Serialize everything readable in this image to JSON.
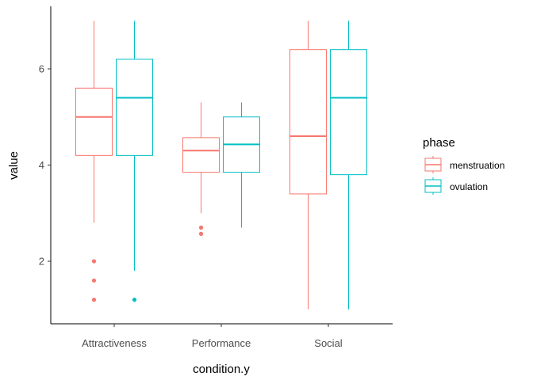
{
  "chart_data": {
    "type": "boxplot",
    "xlabel": "condition.y",
    "ylabel": "value",
    "categories": [
      "Attractiveness",
      "Performance",
      "Social"
    ],
    "ylim": [
      0.8,
      7.0
    ],
    "yticks": [
      2,
      4,
      6
    ],
    "grid": false,
    "legend": {
      "title": "phase",
      "placement": "right"
    },
    "series": [
      {
        "name": "menstruation",
        "color": "#F8766D",
        "boxes": [
          {
            "category": "Attractiveness",
            "whisker_low": 2.8,
            "q1": 4.2,
            "median": 5.0,
            "q3": 5.6,
            "whisker_high": 7.0,
            "outliers": [
              2.0,
              1.6,
              1.2
            ]
          },
          {
            "category": "Performance",
            "whisker_low": 3.0,
            "q1": 3.85,
            "median": 4.3,
            "q3": 4.57,
            "whisker_high": 5.3,
            "outliers": [
              2.7,
              2.57
            ]
          },
          {
            "category": "Social",
            "whisker_low": 1.0,
            "q1": 3.4,
            "median": 4.6,
            "q3": 6.4,
            "whisker_high": 7.0,
            "outliers": []
          }
        ]
      },
      {
        "name": "ovulation",
        "color": "#00BFC4",
        "boxes": [
          {
            "category": "Attractiveness",
            "whisker_low": 1.8,
            "q1": 4.2,
            "median": 5.4,
            "q3": 6.2,
            "whisker_high": 7.0,
            "outliers": [
              1.2
            ]
          },
          {
            "category": "Performance",
            "whisker_low": 2.7,
            "q1": 3.85,
            "median": 4.43,
            "q3": 5.0,
            "whisker_high": 5.3,
            "outliers": []
          },
          {
            "category": "Social",
            "whisker_low": 1.0,
            "q1": 3.8,
            "median": 5.4,
            "q3": 6.4,
            "whisker_high": 7.0,
            "outliers": []
          }
        ]
      }
    ]
  }
}
